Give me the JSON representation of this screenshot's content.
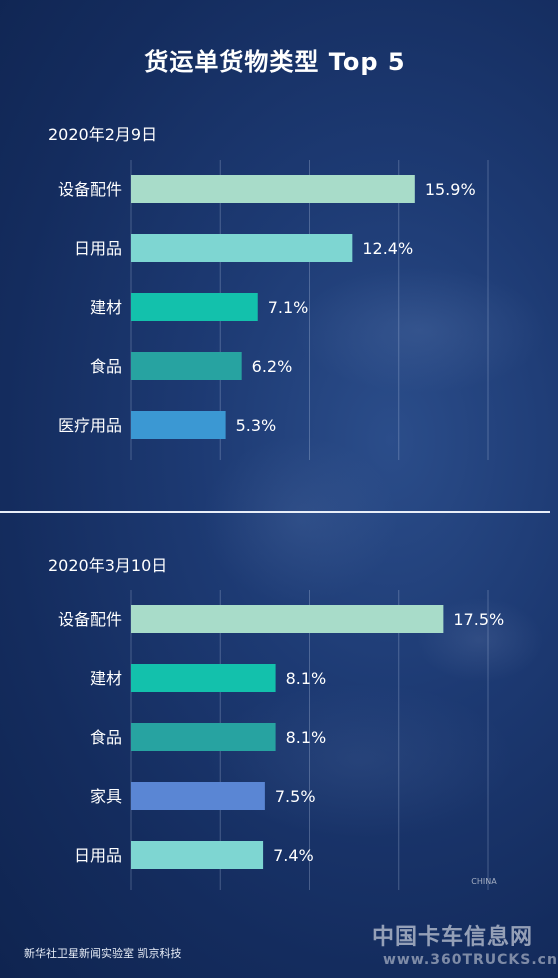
{
  "title": "货运单货物类型 Top 5",
  "chart_data": [
    {
      "type": "bar",
      "subtitle": "2020年2月9日",
      "categories": [
        "设备配件",
        "日用品",
        "建材",
        "食品",
        "医疗用品"
      ],
      "values": [
        15.9,
        12.4,
        7.1,
        6.2,
        5.3
      ],
      "value_labels": [
        "15.9%",
        "12.4%",
        "7.1%",
        "6.2%",
        "5.3%"
      ],
      "colors": [
        "#a8dcc9",
        "#7ed6d2",
        "#13c1ac",
        "#27a3a1",
        "#3b98d3"
      ],
      "xlim": [
        0,
        20
      ],
      "grid": true
    },
    {
      "type": "bar",
      "subtitle": "2020年3月10日",
      "categories": [
        "设备配件",
        "建材",
        "食品",
        "家具",
        "日用品"
      ],
      "values": [
        17.5,
        8.1,
        8.1,
        7.5,
        7.4
      ],
      "value_labels": [
        "17.5%",
        "8.1%",
        "8.1%",
        "7.5%",
        "7.4%"
      ],
      "colors": [
        "#a8dcc9",
        "#13c1ac",
        "#27a3a1",
        "#5a86d4",
        "#7ed6d2"
      ],
      "xlim": [
        0,
        20
      ],
      "grid": true
    }
  ],
  "footer": {
    "credit": "新华社卫星新闻实验室  凯京科技",
    "watermark": "中国卡车信息网",
    "watermark_url": "www.360TRUCKS.cn",
    "badge": "CHINA"
  }
}
